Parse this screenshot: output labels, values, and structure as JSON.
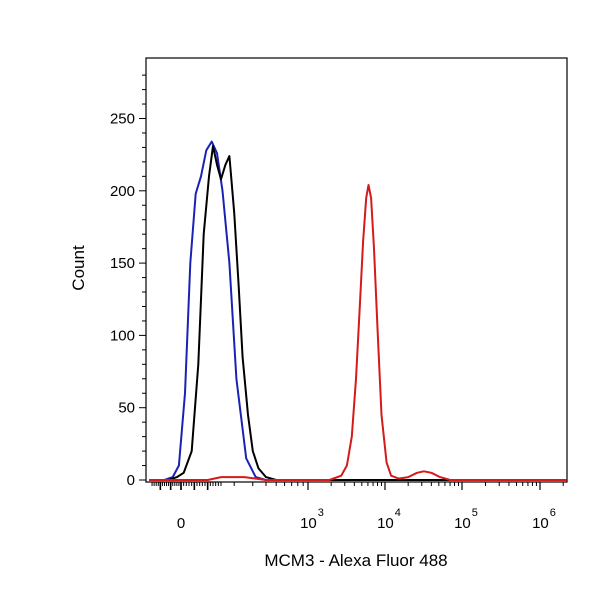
{
  "chart_data": {
    "type": "line",
    "title": "",
    "xlabel": "MCM3 - Alexa Fluor 488",
    "ylabel": "Count",
    "x_scale": "biexponential",
    "ylim": [
      0,
      290
    ],
    "y_ticks": [
      {
        "value": 0,
        "label": "0"
      },
      {
        "value": 50,
        "label": "50"
      },
      {
        "value": 100,
        "label": "100"
      },
      {
        "value": 150,
        "label": "150"
      },
      {
        "value": 200,
        "label": "200"
      },
      {
        "value": 250,
        "label": "250"
      }
    ],
    "x_ticks": [
      {
        "value": 0,
        "label": "0",
        "exp": ""
      },
      {
        "value": 1000,
        "label": "10",
        "exp": "3"
      },
      {
        "value": 10000,
        "label": "10",
        "exp": "4"
      },
      {
        "value": 100000,
        "label": "10",
        "exp": "5"
      },
      {
        "value": 1000000,
        "label": "10",
        "exp": "6"
      }
    ],
    "grid": false,
    "legend": "none",
    "series": [
      {
        "color": "#1a22b4",
        "x": [
          -150,
          -80,
          -40,
          -10,
          15,
          35,
          55,
          75,
          95,
          115,
          135,
          155,
          180,
          210,
          260,
          320,
          400,
          600,
          1000,
          10000,
          1000000
        ],
        "y": [
          0,
          0,
          2,
          10,
          60,
          150,
          198,
          210,
          228,
          234,
          226,
          200,
          150,
          70,
          15,
          2,
          0,
          0,
          0,
          0,
          0
        ]
      },
      {
        "color": "#000000",
        "x": [
          -150,
          -60,
          -20,
          10,
          40,
          65,
          85,
          105,
          120,
          135,
          150,
          165,
          180,
          200,
          220,
          240,
          270,
          300,
          340,
          400,
          500,
          700,
          1000,
          10000,
          1000000
        ],
        "y": [
          0,
          0,
          2,
          5,
          20,
          80,
          170,
          210,
          231,
          218,
          208,
          218,
          224,
          185,
          135,
          85,
          45,
          20,
          8,
          2,
          0,
          0,
          0,
          0,
          0
        ]
      },
      {
        "color": "#d41a1a",
        "x": [
          -150,
          100,
          150,
          250,
          400,
          1000,
          1900,
          2700,
          3200,
          3700,
          4200,
          4700,
          5200,
          5700,
          6100,
          6600,
          7200,
          8000,
          9000,
          10500,
          12000,
          15000,
          20000,
          26000,
          32000,
          40000,
          52000,
          70000,
          100000,
          1000000
        ],
        "y": [
          0,
          0,
          2,
          2,
          0,
          0,
          0,
          3,
          10,
          30,
          70,
          120,
          165,
          195,
          204,
          195,
          160,
          105,
          45,
          12,
          3,
          1,
          2,
          5,
          6,
          5,
          2,
          0,
          0,
          0
        ]
      }
    ]
  }
}
